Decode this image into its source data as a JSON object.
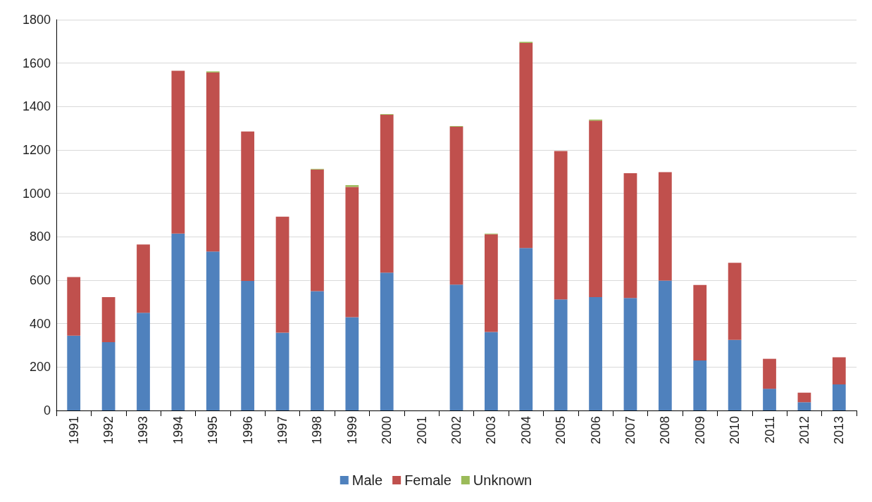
{
  "chart_data": {
    "type": "bar",
    "stacked": true,
    "categories": [
      "1991",
      "1992",
      "1993",
      "1994",
      "1995",
      "1996",
      "1997",
      "1998",
      "1999",
      "2000",
      "2001",
      "2002",
      "2003",
      "2004",
      "2005",
      "2006",
      "2007",
      "2008",
      "2009",
      "2010",
      "2011",
      "2012",
      "2013"
    ],
    "series": [
      {
        "name": "Male",
        "color": "#4f81bd",
        "values": [
          345,
          315,
          450,
          815,
          732,
          597,
          358,
          550,
          430,
          635,
          null,
          580,
          362,
          748,
          512,
          522,
          518,
          598,
          230,
          325,
          100,
          38,
          120
        ]
      },
      {
        "name": "Female",
        "color": "#c0504d",
        "values": [
          270,
          207,
          315,
          750,
          825,
          688,
          535,
          560,
          600,
          727,
          null,
          727,
          450,
          945,
          683,
          813,
          575,
          500,
          348,
          355,
          138,
          44,
          125
        ]
      },
      {
        "name": "Unknown",
        "color": "#9bbb59",
        "values": [
          0,
          0,
          0,
          0,
          5,
          0,
          0,
          3,
          8,
          3,
          null,
          3,
          3,
          5,
          0,
          5,
          0,
          0,
          0,
          0,
          0,
          0,
          0
        ]
      }
    ],
    "ylim": [
      0,
      1800
    ],
    "yticks": [
      0,
      200,
      400,
      600,
      800,
      1000,
      1200,
      1400,
      1600,
      1800
    ],
    "grid": "y",
    "legend": "bottom"
  }
}
